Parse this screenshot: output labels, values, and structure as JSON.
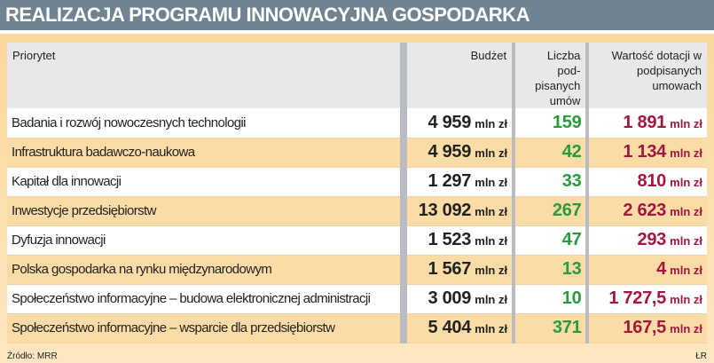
{
  "title": "REALIZACJA PROGRAMU INNOWACYJNA GOSPODARKA",
  "headers": {
    "priority": "Priorytet",
    "budget": "Budżet",
    "count": "Liczba pod-pisanych umów",
    "value": "Wartość dotacji w podpisanych umowach"
  },
  "unit": "mln zł",
  "rows": [
    {
      "priority": "Badania i rozwój nowoczesnych technologii",
      "budget": "4 959",
      "count": "159",
      "value": "1 891"
    },
    {
      "priority": "Infrastruktura badawczo-naukowa",
      "budget": "4 959",
      "count": "42",
      "value": "1 134"
    },
    {
      "priority": "Kapitał dla innowacji",
      "budget": "1 297",
      "count": "33",
      "value": "810"
    },
    {
      "priority": "Inwestycje przedsiębiorstw",
      "budget": "13 092",
      "count": "267",
      "value": "2 623"
    },
    {
      "priority": "Dyfuzja innowacji",
      "budget": "1 523",
      "count": "47",
      "value": "293"
    },
    {
      "priority": "Polska gospodarka na rynku międzynarodowym",
      "budget": "1 567",
      "count": "13",
      "value": "4"
    },
    {
      "priority": "Społeczeństwo informacyjne – budowa elektronicznej administracji",
      "budget": "3 009",
      "count": "10",
      "value": "1 727,5"
    },
    {
      "priority": "Społeczeństwo informacyjne – wsparcie dla przedsiębiorstw",
      "budget": "5 404",
      "count": "371",
      "value": "167,5"
    }
  ],
  "source": "Źródło: MRR",
  "credit": "ŁR",
  "colors": {
    "count": "#2a9a3f",
    "value": "#a3163f",
    "title_bg": "#6f8391"
  }
}
